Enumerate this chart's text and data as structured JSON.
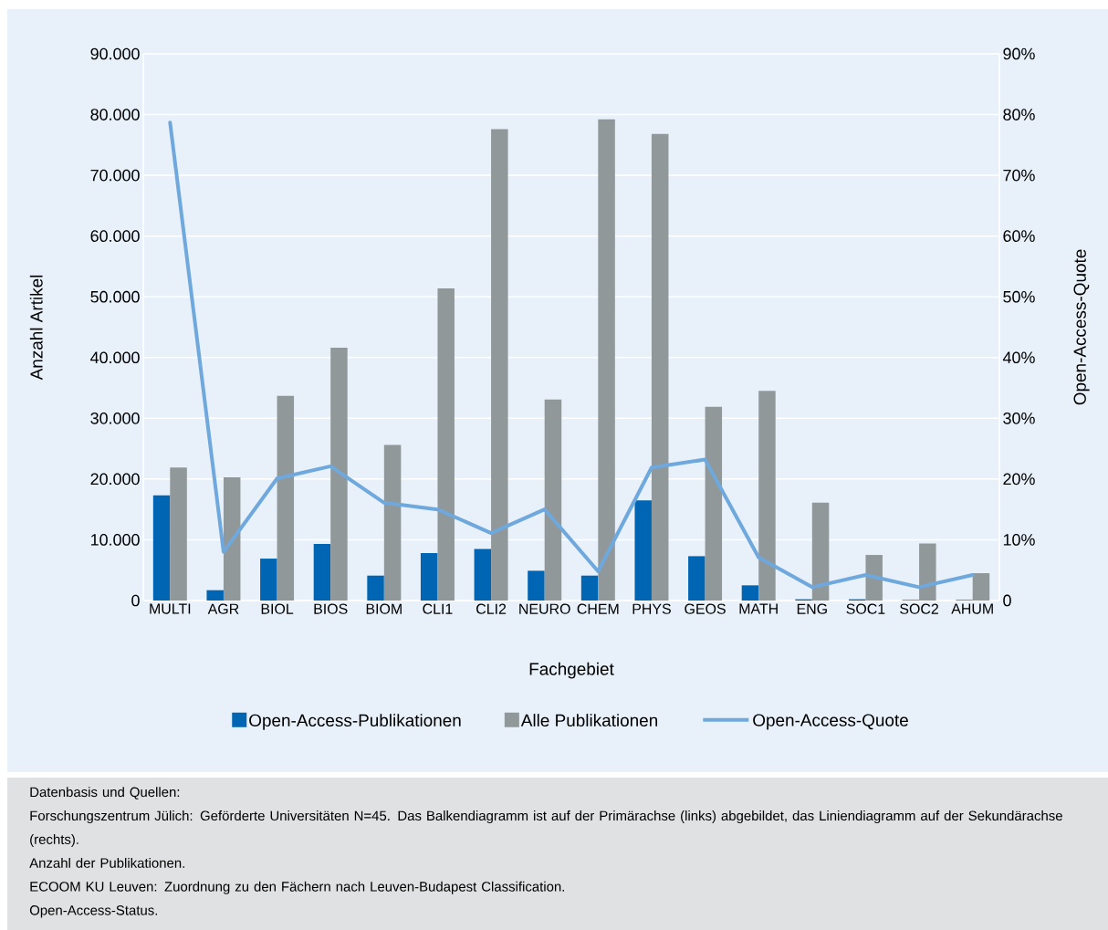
{
  "chart_data": {
    "type": "bar",
    "categories": [
      "MULTI",
      "AGR",
      "BIOL",
      "BIOS",
      "BIOM",
      "CLI1",
      "CLI2",
      "NEURO",
      "CHEM",
      "PHYS",
      "GEOS",
      "MATH",
      "ENG",
      "SOC1",
      "SOC2",
      "AHUM"
    ],
    "series": [
      {
        "name": "Open-Access-Publikationen",
        "color": "#0066b3",
        "values": [
          17300,
          1700,
          6900,
          9300,
          4100,
          7800,
          8500,
          4900,
          4100,
          16500,
          7300,
          2500,
          200,
          200,
          100,
          100
        ]
      },
      {
        "name": "Alle Publikationen",
        "color": "#919899",
        "values": [
          21900,
          20300,
          33700,
          41600,
          25600,
          51400,
          77600,
          33100,
          79200,
          76800,
          31900,
          34500,
          16100,
          7500,
          9400,
          4500
        ]
      },
      {
        "name": "Open-Access-Quote",
        "type": "line",
        "axis": "y2",
        "color": "#6fa8dc",
        "values": [
          78.7,
          8.0,
          20.1,
          22.1,
          16.1,
          15.0,
          11.1,
          15.0,
          4.8,
          21.9,
          23.2,
          7.1,
          2.2,
          4.2,
          2.2,
          4.2
        ]
      }
    ],
    "xlabel": "Fachgebiet",
    "ylabel": "Anzahl Artikel",
    "y2label": "Open-Access-Quote",
    "ylim": [
      0,
      90000
    ],
    "yticks": [
      0,
      {
        "value": 10000,
        "label": "10.000"
      },
      {
        "value": 20000,
        "label": "20.000"
      },
      {
        "value": 30000,
        "label": "30.000"
      },
      {
        "value": 40000,
        "label": "40.000"
      },
      {
        "value": 50000,
        "label": "50.000"
      },
      {
        "value": 60000,
        "label": "60.000"
      },
      {
        "value": 70000,
        "label": "70.000"
      },
      {
        "value": 80000,
        "label": "80.000"
      },
      {
        "value": 90000,
        "label": "90.000"
      }
    ],
    "y2lim": [
      0,
      90
    ],
    "y2ticks": [
      0,
      {
        "value": 10,
        "label": "10%"
      },
      {
        "value": 20,
        "label": "20%"
      },
      {
        "value": 30,
        "label": "30%"
      },
      {
        "value": 40,
        "label": "40%"
      },
      {
        "value": 50,
        "label": "50%"
      },
      {
        "value": 60,
        "label": "60%"
      },
      {
        "value": 70,
        "label": "70%"
      },
      {
        "value": 80,
        "label": "80%"
      },
      {
        "value": 90,
        "label": "90%"
      }
    ],
    "grid": "y",
    "legend": "bottom",
    "line_style": "solid",
    "annotations": [
      "Datenbasis und Quellen:",
      "Forschungszentrum Jülich: Geförderte Universitäten N=45. Das Balkendiagramm ist auf der Primärachse (links) abgebildet, das Liniendiagramm auf der Sekundärachse (rechts).",
      "Anzahl der Publikationen.",
      "ECOOM KU Leuven: Zuordnung zu den Fächern nach Leuven-Budapest Classification.",
      "Open-Access-Status."
    ]
  }
}
